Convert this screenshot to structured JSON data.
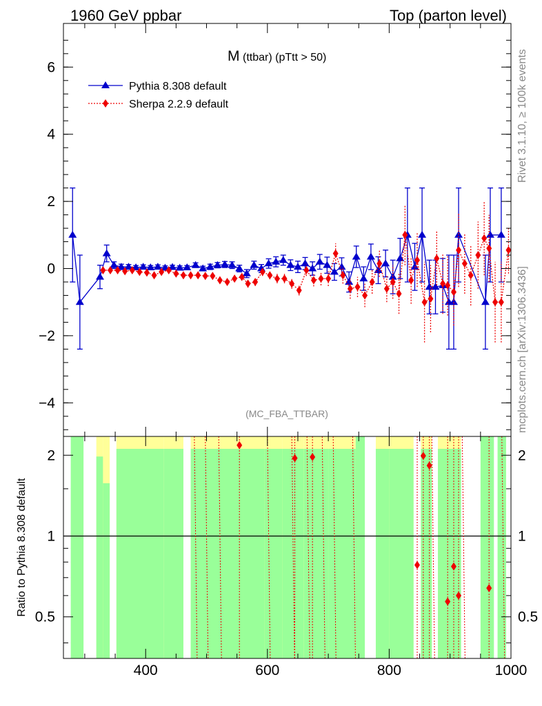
{
  "header": {
    "left_label": "1960 GeV ppbar",
    "right_label": "Top (parton level)"
  },
  "side_labels": {
    "rivet": "Rivet 3.1.10, ≥ 100k events",
    "mcplots": "mcplots.cern.ch [arXiv:1306.3436]"
  },
  "colors": {
    "pythia": "#0000cc",
    "sherpa": "#ee0000",
    "band_green": "#99ff99",
    "band_yellow": "#ffff99"
  },
  "chart_data": [
    {
      "type": "line",
      "title_main": "M",
      "title_sub": "(ttbar) (pTtt > 50)",
      "watermark": "(MC_FBA_TTBAR)",
      "xlim": [
        265,
        1000
      ],
      "ylim": [
        -5,
        7.3
      ],
      "yticks": [
        -4,
        -2,
        0,
        2,
        4,
        6
      ],
      "ytick_labels": [
        "−4",
        "−2",
        "0",
        "2",
        "4",
        "6"
      ],
      "legend_position": "top-left",
      "series": [
        {
          "name": "Pythia 8.308 default",
          "marker": "triangle",
          "points": [
            {
              "x": 280,
              "y": 1.0,
              "err": 1.4
            },
            {
              "x": 292,
              "y": -1.0,
              "err": 1.4
            },
            {
              "x": 325,
              "y": -0.25,
              "err": 0.35
            },
            {
              "x": 336,
              "y": 0.45,
              "err": 0.25
            },
            {
              "x": 348,
              "y": 0.1,
              "err": 0.1
            },
            {
              "x": 360,
              "y": 0.05,
              "err": 0.08
            },
            {
              "x": 372,
              "y": 0.05,
              "err": 0.07
            },
            {
              "x": 384,
              "y": 0.03,
              "err": 0.06
            },
            {
              "x": 396,
              "y": 0.05,
              "err": 0.06
            },
            {
              "x": 408,
              "y": 0.03,
              "err": 0.06
            },
            {
              "x": 420,
              "y": 0.05,
              "err": 0.06
            },
            {
              "x": 432,
              "y": 0.02,
              "err": 0.06
            },
            {
              "x": 444,
              "y": 0.04,
              "err": 0.06
            },
            {
              "x": 456,
              "y": 0.02,
              "err": 0.06
            },
            {
              "x": 468,
              "y": 0.03,
              "err": 0.06
            },
            {
              "x": 482,
              "y": 0.1,
              "err": 0.07
            },
            {
              "x": 494,
              "y": 0.0,
              "err": 0.07
            },
            {
              "x": 506,
              "y": 0.05,
              "err": 0.08
            },
            {
              "x": 518,
              "y": 0.1,
              "err": 0.08
            },
            {
              "x": 530,
              "y": 0.12,
              "err": 0.09
            },
            {
              "x": 542,
              "y": 0.1,
              "err": 0.1
            },
            {
              "x": 554,
              "y": 0.0,
              "err": 0.1
            },
            {
              "x": 566,
              "y": -0.15,
              "err": 0.12
            },
            {
              "x": 578,
              "y": 0.1,
              "err": 0.12
            },
            {
              "x": 590,
              "y": 0.0,
              "err": 0.12
            },
            {
              "x": 602,
              "y": 0.15,
              "err": 0.14
            },
            {
              "x": 614,
              "y": 0.2,
              "err": 0.15
            },
            {
              "x": 626,
              "y": 0.25,
              "err": 0.15
            },
            {
              "x": 638,
              "y": 0.1,
              "err": 0.16
            },
            {
              "x": 650,
              "y": 0.05,
              "err": 0.17
            },
            {
              "x": 662,
              "y": 0.15,
              "err": 0.18
            },
            {
              "x": 674,
              "y": 0.0,
              "err": 0.2
            },
            {
              "x": 686,
              "y": 0.2,
              "err": 0.22
            },
            {
              "x": 698,
              "y": 0.1,
              "err": 0.24
            },
            {
              "x": 710,
              "y": -0.1,
              "err": 0.25
            },
            {
              "x": 722,
              "y": 0.05,
              "err": 0.27
            },
            {
              "x": 734,
              "y": -0.4,
              "err": 0.3
            },
            {
              "x": 746,
              "y": 0.35,
              "err": 0.32
            },
            {
              "x": 758,
              "y": -0.3,
              "err": 0.35
            },
            {
              "x": 770,
              "y": 0.35,
              "err": 0.38
            },
            {
              "x": 782,
              "y": -0.05,
              "err": 0.4
            },
            {
              "x": 794,
              "y": 0.15,
              "err": 0.4
            },
            {
              "x": 806,
              "y": -0.25,
              "err": 0.5
            },
            {
              "x": 818,
              "y": 0.3,
              "err": 0.6
            },
            {
              "x": 830,
              "y": 1.0,
              "err": 1.4
            },
            {
              "x": 842,
              "y": 0.05,
              "err": 0.7
            },
            {
              "x": 854,
              "y": 1.0,
              "err": 1.4
            },
            {
              "x": 866,
              "y": -0.55,
              "err": 0.8
            },
            {
              "x": 876,
              "y": -0.55,
              "err": 0.8
            },
            {
              "x": 888,
              "y": -0.5,
              "err": 0.8
            },
            {
              "x": 898,
              "y": -1.0,
              "err": 1.4
            },
            {
              "x": 906,
              "y": -1.0,
              "err": 1.4
            },
            {
              "x": 914,
              "y": 1.0,
              "err": 1.4
            },
            {
              "x": 958,
              "y": -1.0,
              "err": 1.4
            },
            {
              "x": 966,
              "y": 1.0,
              "err": 1.4
            },
            {
              "x": 984,
              "y": 1.0,
              "err": 1.4
            }
          ]
        },
        {
          "name": "Sherpa 2.2.9 default",
          "marker": "diamond",
          "points": [
            {
              "x": 330,
              "y": -0.05,
              "err": 0.1
            },
            {
              "x": 342,
              "y": -0.05,
              "err": 0.08
            },
            {
              "x": 354,
              "y": -0.05,
              "err": 0.08
            },
            {
              "x": 366,
              "y": -0.08,
              "err": 0.08
            },
            {
              "x": 378,
              "y": -0.05,
              "err": 0.08
            },
            {
              "x": 390,
              "y": -0.1,
              "err": 0.08
            },
            {
              "x": 402,
              "y": -0.12,
              "err": 0.08
            },
            {
              "x": 414,
              "y": -0.2,
              "err": 0.08
            },
            {
              "x": 426,
              "y": -0.1,
              "err": 0.08
            },
            {
              "x": 438,
              "y": -0.05,
              "err": 0.08
            },
            {
              "x": 450,
              "y": -0.15,
              "err": 0.08
            },
            {
              "x": 462,
              "y": -0.2,
              "err": 0.08
            },
            {
              "x": 474,
              "y": -0.2,
              "err": 0.08
            },
            {
              "x": 486,
              "y": -0.2,
              "err": 0.08
            },
            {
              "x": 498,
              "y": -0.22,
              "err": 0.08
            },
            {
              "x": 510,
              "y": -0.22,
              "err": 0.08
            },
            {
              "x": 522,
              "y": -0.35,
              "err": 0.1
            },
            {
              "x": 534,
              "y": -0.4,
              "err": 0.1
            },
            {
              "x": 546,
              "y": -0.3,
              "err": 0.1
            },
            {
              "x": 558,
              "y": -0.25,
              "err": 0.1
            },
            {
              "x": 568,
              "y": -0.45,
              "err": 0.12
            },
            {
              "x": 580,
              "y": -0.4,
              "err": 0.12
            },
            {
              "x": 592,
              "y": -0.1,
              "err": 0.12
            },
            {
              "x": 604,
              "y": -0.2,
              "err": 0.12
            },
            {
              "x": 616,
              "y": -0.3,
              "err": 0.14
            },
            {
              "x": 628,
              "y": -0.3,
              "err": 0.14
            },
            {
              "x": 640,
              "y": -0.45,
              "err": 0.15
            },
            {
              "x": 652,
              "y": -0.65,
              "err": 0.15
            },
            {
              "x": 664,
              "y": -0.05,
              "err": 0.17
            },
            {
              "x": 676,
              "y": -0.35,
              "err": 0.18
            },
            {
              "x": 688,
              "y": -0.3,
              "err": 0.2
            },
            {
              "x": 700,
              "y": -0.3,
              "err": 0.22
            },
            {
              "x": 712,
              "y": 0.45,
              "err": 0.3
            },
            {
              "x": 724,
              "y": -0.2,
              "err": 0.25
            },
            {
              "x": 736,
              "y": -0.6,
              "err": 0.3
            },
            {
              "x": 748,
              "y": -0.55,
              "err": 0.3
            },
            {
              "x": 760,
              "y": -0.8,
              "err": 0.35
            },
            {
              "x": 772,
              "y": -0.4,
              "err": 0.35
            },
            {
              "x": 784,
              "y": 0.15,
              "err": 0.4
            },
            {
              "x": 796,
              "y": -0.6,
              "err": 0.4
            },
            {
              "x": 806,
              "y": -0.4,
              "err": 0.5
            },
            {
              "x": 816,
              "y": -0.75,
              "err": 0.6
            },
            {
              "x": 826,
              "y": 1.0,
              "err": 0.9
            },
            {
              "x": 836,
              "y": -0.35,
              "err": 0.7
            },
            {
              "x": 846,
              "y": 0.25,
              "err": 0.8
            },
            {
              "x": 858,
              "y": -1.0,
              "err": 1.2
            },
            {
              "x": 868,
              "y": -0.9,
              "err": 1.0
            },
            {
              "x": 878,
              "y": 0.3,
              "err": 0.8
            },
            {
              "x": 888,
              "y": -0.45,
              "err": 0.9
            },
            {
              "x": 896,
              "y": -0.5,
              "err": 0.9
            },
            {
              "x": 906,
              "y": -0.7,
              "err": 1.0
            },
            {
              "x": 914,
              "y": 0.55,
              "err": 1.1
            },
            {
              "x": 924,
              "y": 0.15,
              "err": 0.9
            },
            {
              "x": 934,
              "y": -0.2,
              "err": 0.9
            },
            {
              "x": 946,
              "y": 0.4,
              "err": 1.0
            },
            {
              "x": 956,
              "y": 0.9,
              "err": 1.1
            },
            {
              "x": 964,
              "y": 0.6,
              "err": 1.0
            },
            {
              "x": 974,
              "y": -1.0,
              "err": 1.2
            },
            {
              "x": 984,
              "y": -1.0,
              "err": 1.2
            },
            {
              "x": 996,
              "y": 0.55,
              "err": 0.7
            }
          ]
        }
      ]
    },
    {
      "type": "line",
      "ylabel": "Ratio to Pythia 8.308 default",
      "xlim": [
        265,
        1000
      ],
      "ylim": [
        0.35,
        2.35
      ],
      "xticks": [
        400,
        600,
        800,
        1000
      ],
      "xtick_labels": [
        "400",
        "600",
        "800",
        "1000"
      ],
      "yticks": [
        0.5,
        1,
        2
      ],
      "ytick_labels": [
        "0.5",
        "1",
        "2"
      ],
      "reference_line": 1.0,
      "bands": [
        {
          "x0": 277,
          "x1": 298,
          "lo": 0.35,
          "hi": 2.35,
          "yellow": false
        },
        {
          "x0": 319,
          "x1": 330,
          "lo": 0.35,
          "hi": 2.2,
          "yellow": true
        },
        {
          "x0": 330,
          "x1": 341,
          "lo": 0.35,
          "hi": 1.75,
          "yellow": true
        },
        {
          "x0": 352,
          "x1": 430,
          "lo": 0.35,
          "hi": 2.35,
          "yellow": true
        },
        {
          "x0": 430,
          "x1": 462,
          "lo": 0.35,
          "hi": 2.35,
          "yellow": true
        },
        {
          "x0": 474,
          "x1": 530,
          "lo": 0.35,
          "hi": 2.35,
          "yellow": true
        },
        {
          "x0": 530,
          "x1": 560,
          "lo": 0.35,
          "hi": 2.35,
          "yellow": true
        },
        {
          "x0": 560,
          "x1": 595,
          "lo": 0.35,
          "hi": 2.35,
          "yellow": true
        },
        {
          "x0": 595,
          "x1": 625,
          "lo": 0.35,
          "hi": 2.35,
          "yellow": true
        },
        {
          "x0": 625,
          "x1": 660,
          "lo": 0.35,
          "hi": 2.35,
          "yellow": true
        },
        {
          "x0": 660,
          "x1": 700,
          "lo": 0.35,
          "hi": 2.35,
          "yellow": true
        },
        {
          "x0": 700,
          "x1": 745,
          "lo": 0.35,
          "hi": 2.35,
          "yellow": true
        },
        {
          "x0": 745,
          "x1": 760,
          "lo": 0.35,
          "hi": 2.35,
          "yellow": false
        },
        {
          "x0": 778,
          "x1": 800,
          "lo": 0.35,
          "hi": 2.35,
          "yellow": true
        },
        {
          "x0": 800,
          "x1": 840,
          "lo": 0.35,
          "hi": 2.35,
          "yellow": true
        },
        {
          "x0": 852,
          "x1": 870,
          "lo": 0.35,
          "hi": 2.35,
          "yellow": true
        },
        {
          "x0": 880,
          "x1": 918,
          "lo": 0.35,
          "hi": 2.35,
          "yellow": true
        },
        {
          "x0": 950,
          "x1": 972,
          "lo": 0.35,
          "hi": 2.35,
          "yellow": false
        },
        {
          "x0": 978,
          "x1": 992,
          "lo": 0.35,
          "hi": 2.35,
          "yellow": false
        }
      ],
      "ratio_points": [
        {
          "x": 554,
          "y": 2.18
        },
        {
          "x": 645,
          "y": 1.95
        },
        {
          "x": 674,
          "y": 1.97
        },
        {
          "x": 846,
          "y": 0.78
        },
        {
          "x": 856,
          "y": 1.99
        },
        {
          "x": 866,
          "y": 1.83
        },
        {
          "x": 896,
          "y": 0.57
        },
        {
          "x": 906,
          "y": 0.77
        },
        {
          "x": 914,
          "y": 0.6
        },
        {
          "x": 964,
          "y": 0.64
        }
      ]
    }
  ]
}
